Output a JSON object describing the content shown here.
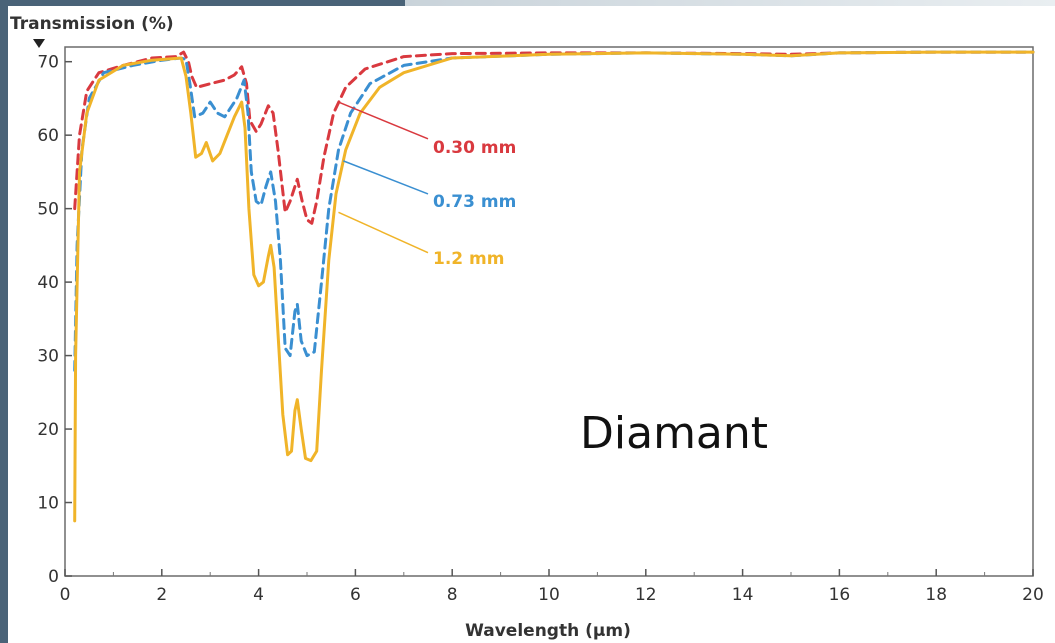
{
  "chart_data": {
    "type": "line",
    "ylabel": "Transmission (%)",
    "xlabel": "Wavelength (µm)",
    "xlim": [
      0,
      20
    ],
    "ylim": [
      0,
      72
    ],
    "x_ticks": [
      0,
      2,
      4,
      6,
      8,
      10,
      12,
      14,
      16,
      18,
      20
    ],
    "y_ticks": [
      0,
      10,
      20,
      30,
      40,
      50,
      60,
      70
    ],
    "grid": false,
    "annotation": "Diamant",
    "series": [
      {
        "name": "0.30 mm",
        "color": "#d9393f",
        "style": "dashed",
        "points": [
          [
            0.2,
            50
          ],
          [
            0.3,
            60
          ],
          [
            0.45,
            66
          ],
          [
            0.7,
            68.5
          ],
          [
            1.2,
            69.5
          ],
          [
            1.8,
            70.5
          ],
          [
            2.3,
            70.7
          ],
          [
            2.45,
            71.3
          ],
          [
            2.55,
            70
          ],
          [
            2.62,
            68
          ],
          [
            2.72,
            66.5
          ],
          [
            3.0,
            67
          ],
          [
            3.3,
            67.5
          ],
          [
            3.5,
            68.2
          ],
          [
            3.65,
            69.3
          ],
          [
            3.75,
            67
          ],
          [
            3.82,
            62
          ],
          [
            3.95,
            60.5
          ],
          [
            4.05,
            61.5
          ],
          [
            4.2,
            64
          ],
          [
            4.3,
            63
          ],
          [
            4.4,
            58
          ],
          [
            4.55,
            49.5
          ],
          [
            4.65,
            51
          ],
          [
            4.8,
            54
          ],
          [
            4.9,
            51
          ],
          [
            5.0,
            48.5
          ],
          [
            5.1,
            48
          ],
          [
            5.2,
            51
          ],
          [
            5.35,
            57
          ],
          [
            5.55,
            63
          ],
          [
            5.8,
            66.5
          ],
          [
            6.2,
            69
          ],
          [
            7,
            70.7
          ],
          [
            8,
            71.1
          ],
          [
            10,
            71.2
          ],
          [
            12,
            71.2
          ],
          [
            14,
            71.1
          ],
          [
            15,
            71
          ],
          [
            16,
            71.2
          ],
          [
            18,
            71.3
          ],
          [
            20,
            71.3
          ]
        ]
      },
      {
        "name": "0.73 mm",
        "color": "#3a8fd1",
        "style": "dashed",
        "points": [
          [
            0.2,
            28
          ],
          [
            0.25,
            45
          ],
          [
            0.35,
            58
          ],
          [
            0.5,
            65
          ],
          [
            0.8,
            68.5
          ],
          [
            1.4,
            69.5
          ],
          [
            2.0,
            70.2
          ],
          [
            2.4,
            70.5
          ],
          [
            2.5,
            70.3
          ],
          [
            2.58,
            67
          ],
          [
            2.68,
            62.5
          ],
          [
            2.85,
            63
          ],
          [
            3.0,
            64.5
          ],
          [
            3.15,
            63
          ],
          [
            3.3,
            62.5
          ],
          [
            3.55,
            65
          ],
          [
            3.7,
            67.5
          ],
          [
            3.78,
            63
          ],
          [
            3.85,
            55
          ],
          [
            3.95,
            51
          ],
          [
            4.05,
            50.5
          ],
          [
            4.15,
            53
          ],
          [
            4.25,
            55
          ],
          [
            4.35,
            51
          ],
          [
            4.45,
            43
          ],
          [
            4.55,
            31
          ],
          [
            4.65,
            30
          ],
          [
            4.75,
            36
          ],
          [
            4.8,
            37
          ],
          [
            4.88,
            32
          ],
          [
            5.0,
            30
          ],
          [
            5.15,
            30.5
          ],
          [
            5.3,
            40
          ],
          [
            5.45,
            50
          ],
          [
            5.65,
            58
          ],
          [
            5.9,
            63
          ],
          [
            6.3,
            67
          ],
          [
            7,
            69.5
          ],
          [
            8,
            70.5
          ],
          [
            10,
            71
          ],
          [
            12,
            71.2
          ],
          [
            14,
            71
          ],
          [
            15,
            70.8
          ],
          [
            16,
            71.2
          ],
          [
            18,
            71.3
          ],
          [
            20,
            71.3
          ]
        ]
      },
      {
        "name": "1.2 mm",
        "color": "#f0b429",
        "style": "solid",
        "points": [
          [
            0.2,
            7.5
          ],
          [
            0.22,
            30
          ],
          [
            0.3,
            55
          ],
          [
            0.45,
            63
          ],
          [
            0.7,
            67.5
          ],
          [
            1.2,
            69.5
          ],
          [
            1.8,
            70.2
          ],
          [
            2.4,
            70.5
          ],
          [
            2.5,
            68
          ],
          [
            2.6,
            63
          ],
          [
            2.7,
            57
          ],
          [
            2.82,
            57.5
          ],
          [
            2.92,
            59
          ],
          [
            3.05,
            56.5
          ],
          [
            3.2,
            57.5
          ],
          [
            3.35,
            60
          ],
          [
            3.5,
            62.5
          ],
          [
            3.65,
            64.5
          ],
          [
            3.72,
            61
          ],
          [
            3.8,
            50
          ],
          [
            3.9,
            41
          ],
          [
            4.0,
            39.5
          ],
          [
            4.1,
            40
          ],
          [
            4.2,
            43.5
          ],
          [
            4.25,
            45
          ],
          [
            4.32,
            42
          ],
          [
            4.4,
            33
          ],
          [
            4.5,
            22
          ],
          [
            4.6,
            16.5
          ],
          [
            4.68,
            17
          ],
          [
            4.75,
            22.5
          ],
          [
            4.8,
            24
          ],
          [
            4.88,
            20
          ],
          [
            4.97,
            16
          ],
          [
            5.08,
            15.7
          ],
          [
            5.2,
            17
          ],
          [
            5.3,
            28
          ],
          [
            5.45,
            43
          ],
          [
            5.6,
            52
          ],
          [
            5.8,
            58
          ],
          [
            6.1,
            63
          ],
          [
            6.5,
            66.5
          ],
          [
            7,
            68.5
          ],
          [
            8,
            70.5
          ],
          [
            10,
            71
          ],
          [
            12,
            71.2
          ],
          [
            14,
            71
          ],
          [
            15,
            70.8
          ],
          [
            16,
            71.2
          ],
          [
            18,
            71.3
          ],
          [
            20,
            71.3
          ]
        ]
      }
    ]
  }
}
